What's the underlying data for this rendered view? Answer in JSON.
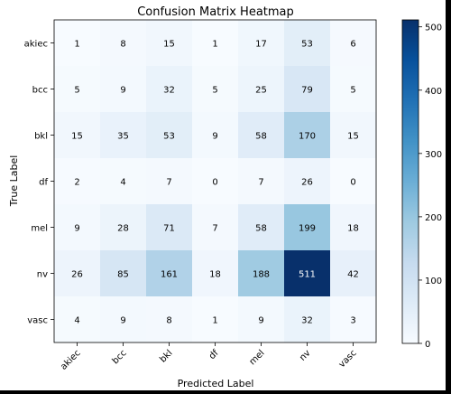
{
  "chart_data": {
    "type": "heatmap",
    "title": "Confusion Matrix Heatmap",
    "xlabel": "Predicted Label",
    "ylabel": "True Label",
    "x_categories": [
      "akiec",
      "bcc",
      "bkl",
      "df",
      "mel",
      "nv",
      "vasc"
    ],
    "y_categories": [
      "akiec",
      "bcc",
      "bkl",
      "df",
      "mel",
      "nv",
      "vasc"
    ],
    "values": [
      [
        1,
        8,
        15,
        1,
        17,
        53,
        6
      ],
      [
        5,
        9,
        32,
        5,
        25,
        79,
        5
      ],
      [
        15,
        35,
        53,
        9,
        58,
        170,
        15
      ],
      [
        2,
        4,
        7,
        0,
        7,
        26,
        0
      ],
      [
        9,
        28,
        71,
        7,
        58,
        199,
        18
      ],
      [
        26,
        85,
        161,
        18,
        188,
        511,
        42
      ],
      [
        4,
        9,
        8,
        1,
        9,
        32,
        3
      ]
    ],
    "colormap": "Blues",
    "colorbar": {
      "range": [
        0,
        511
      ],
      "ticks": [
        0,
        100,
        200,
        300,
        400,
        500
      ]
    },
    "text_color_dark": "#000000",
    "text_color_light": "#ffffff",
    "x_tick_rotation": 45,
    "grid": false
  }
}
